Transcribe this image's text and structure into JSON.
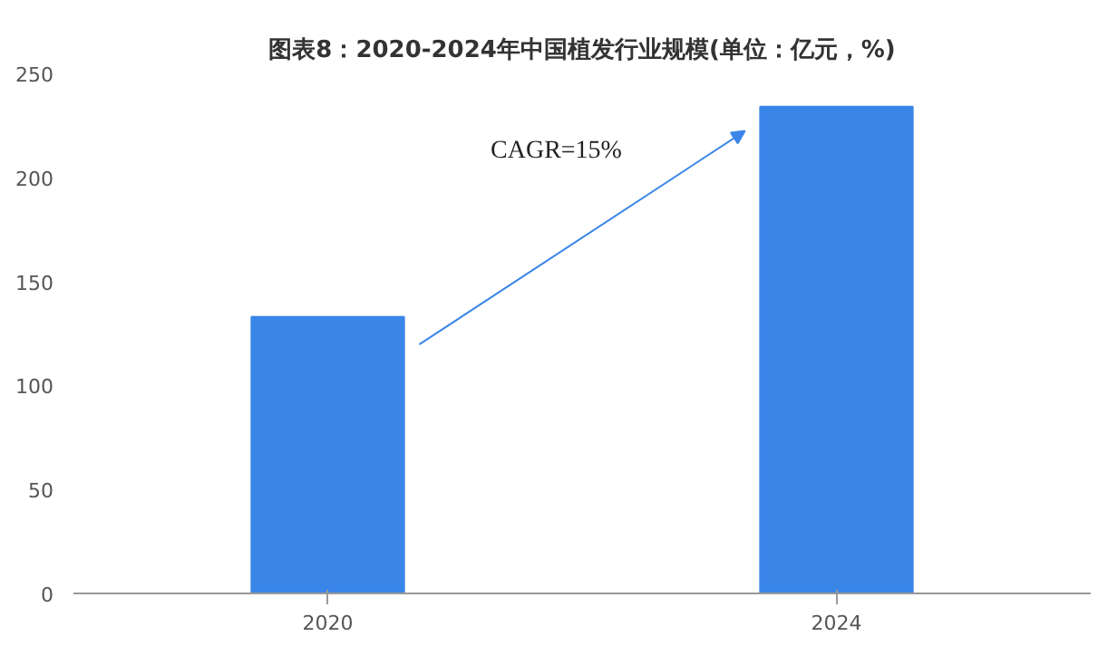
{
  "chart_data": {
    "type": "bar",
    "title": "图表8：2020-2024年中国植发行业规模(单位：亿元，%)",
    "categories": [
      "2020",
      "2024"
    ],
    "values": [
      133,
      234
    ],
    "color": "#3a86e8",
    "ylim": [
      0,
      250
    ],
    "yticks": [
      0,
      50,
      100,
      150,
      200,
      250
    ],
    "grid": false,
    "annotations": [
      "CAGR=15%"
    ]
  }
}
